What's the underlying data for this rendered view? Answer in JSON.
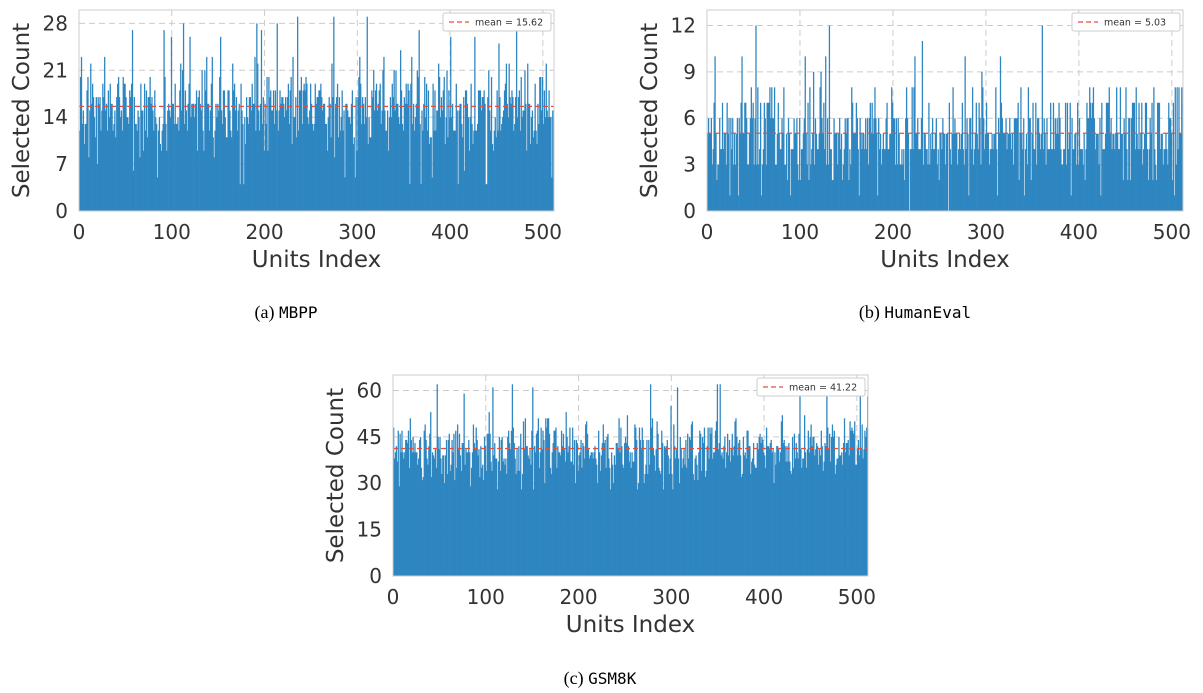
{
  "figure": {
    "colors": {
      "bar": "#2e86c1",
      "mean_line": "#e74c3c",
      "grid": "#cccccc",
      "axis": "#333333"
    }
  },
  "chart_data": [
    {
      "type": "bar",
      "caption_prefix": "(a)",
      "caption_name": "MBPP",
      "xlabel": "Units Index",
      "ylabel": "Selected Count",
      "xlim": [
        0,
        512
      ],
      "ylim": [
        0,
        30
      ],
      "xticks": [
        0,
        100,
        200,
        300,
        400,
        500
      ],
      "yticks": [
        0,
        7,
        14,
        21,
        28
      ],
      "mean": 15.62,
      "legend": "mean = 15.62",
      "legend_position": "top-right",
      "grid": true,
      "n_units": 512,
      "values_summary": {
        "typical_min": 8,
        "typical_max": 26,
        "max": 29,
        "min": 4
      }
    },
    {
      "type": "bar",
      "caption_prefix": "(b)",
      "caption_name": "HumanEval",
      "xlabel": "Units Index",
      "ylabel": "Selected Count",
      "xlim": [
        0,
        512
      ],
      "ylim": [
        0,
        13
      ],
      "xticks": [
        0,
        100,
        200,
        300,
        400,
        500
      ],
      "yticks": [
        0,
        3,
        6,
        9,
        12
      ],
      "mean": 5.03,
      "legend": "mean = 5.03",
      "legend_position": "top-right",
      "grid": true,
      "n_units": 512,
      "values_summary": {
        "typical_min": 1,
        "typical_max": 10,
        "max": 12,
        "min": 0
      }
    },
    {
      "type": "bar",
      "caption_prefix": "(c)",
      "caption_name": "GSM8K",
      "xlabel": "Units Index",
      "ylabel": "Selected Count",
      "xlim": [
        0,
        512
      ],
      "ylim": [
        0,
        65
      ],
      "xticks": [
        0,
        100,
        200,
        300,
        400,
        500
      ],
      "yticks": [
        0,
        15,
        30,
        45,
        60
      ],
      "mean": 41.22,
      "legend": "mean = 41.22",
      "legend_position": "top-right",
      "grid": true,
      "n_units": 512,
      "values_summary": {
        "typical_min": 28,
        "typical_max": 56,
        "max": 63,
        "min": 27
      }
    }
  ]
}
